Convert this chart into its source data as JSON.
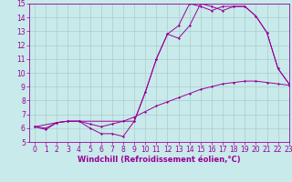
{
  "title": "",
  "xlabel": "Windchill (Refroidissement éolien,°C)",
  "ylabel": "",
  "bg_color": "#c8eaea",
  "line_color": "#990099",
  "grid_color": "#aacccc",
  "xlim": [
    -0.5,
    23
  ],
  "ylim": [
    5,
    15
  ],
  "xticks": [
    0,
    1,
    2,
    3,
    4,
    5,
    6,
    7,
    8,
    9,
    10,
    11,
    12,
    13,
    14,
    15,
    16,
    17,
    18,
    19,
    20,
    21,
    22,
    23
  ],
  "yticks": [
    5,
    6,
    7,
    8,
    9,
    10,
    11,
    12,
    13,
    14,
    15
  ],
  "line1_x": [
    0,
    1,
    2,
    3,
    4,
    5,
    6,
    7,
    8,
    9,
    10,
    11,
    12,
    13,
    14,
    15,
    16,
    17,
    18,
    19,
    20,
    21,
    22,
    23
  ],
  "line1_y": [
    6.1,
    5.9,
    6.4,
    6.5,
    6.5,
    6.0,
    5.6,
    5.6,
    5.4,
    6.5,
    8.6,
    11.0,
    12.8,
    12.5,
    13.4,
    15.0,
    14.8,
    14.5,
    14.8,
    14.8,
    14.1,
    12.9,
    10.3,
    9.2
  ],
  "line2_x": [
    0,
    1,
    2,
    3,
    4,
    5,
    6,
    7,
    8,
    9,
    10,
    11,
    12,
    13,
    14,
    15,
    16,
    17,
    18,
    19,
    20,
    21,
    22,
    23
  ],
  "line2_y": [
    6.1,
    6.0,
    6.4,
    6.5,
    6.5,
    6.3,
    6.1,
    6.3,
    6.5,
    6.8,
    7.2,
    7.6,
    7.9,
    8.2,
    8.5,
    8.8,
    9.0,
    9.2,
    9.3,
    9.4,
    9.4,
    9.3,
    9.2,
    9.1
  ],
  "line3_x": [
    0,
    2,
    3,
    4,
    9,
    10,
    11,
    12,
    13,
    14,
    15,
    16,
    17,
    18,
    19,
    20,
    21,
    22,
    23
  ],
  "line3_y": [
    6.1,
    6.4,
    6.5,
    6.5,
    6.5,
    8.6,
    11.0,
    12.8,
    13.4,
    15.0,
    14.8,
    14.5,
    14.8,
    14.8,
    14.8,
    14.1,
    12.9,
    10.3,
    9.2
  ],
  "tick_fontsize": 5.5,
  "xlabel_fontsize": 6.0
}
